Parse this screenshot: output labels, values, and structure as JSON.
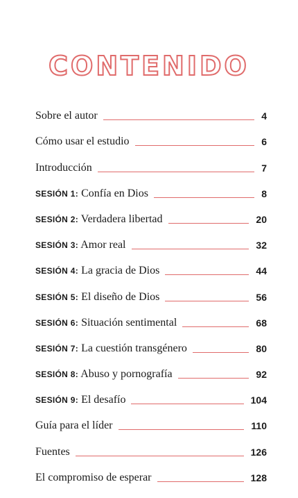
{
  "title": "CONTENIDO",
  "colors": {
    "accent": "#e06b6b",
    "text": "#1a1a1a"
  },
  "entries": [
    {
      "prefix": "",
      "label": "Sobre el autor",
      "page": "4"
    },
    {
      "prefix": "",
      "label": "Cómo usar el estudio",
      "page": "6"
    },
    {
      "prefix": "",
      "label": "Introducción",
      "page": "7"
    },
    {
      "prefix": "SESIÓN 1:",
      "label": "Confía en Dios",
      "page": "8"
    },
    {
      "prefix": "SESIÓN 2:",
      "label": "Verdadera libertad",
      "page": "20"
    },
    {
      "prefix": "SESIÓN 3:",
      "label": "Amor real",
      "page": "32"
    },
    {
      "prefix": "SESIÓN 4:",
      "label": "La gracia de Dios",
      "page": "44"
    },
    {
      "prefix": "SESIÓN 5:",
      "label": "El diseño de Dios",
      "page": "56"
    },
    {
      "prefix": "SESIÓN 6:",
      "label": "Situación sentimental",
      "page": "68"
    },
    {
      "prefix": "SESIÓN 7:",
      "label": "La cuestión transgénero",
      "page": "80"
    },
    {
      "prefix": "SESIÓN 8:",
      "label": "Abuso y pornografía",
      "page": "92"
    },
    {
      "prefix": "SESIÓN 9:",
      "label": "El desafío",
      "page": "104"
    },
    {
      "prefix": "",
      "label": "Guía para el líder",
      "page": "110"
    },
    {
      "prefix": "",
      "label": "Fuentes",
      "page": "126"
    },
    {
      "prefix": "",
      "label": "El compromiso de esperar",
      "page": "128"
    }
  ]
}
